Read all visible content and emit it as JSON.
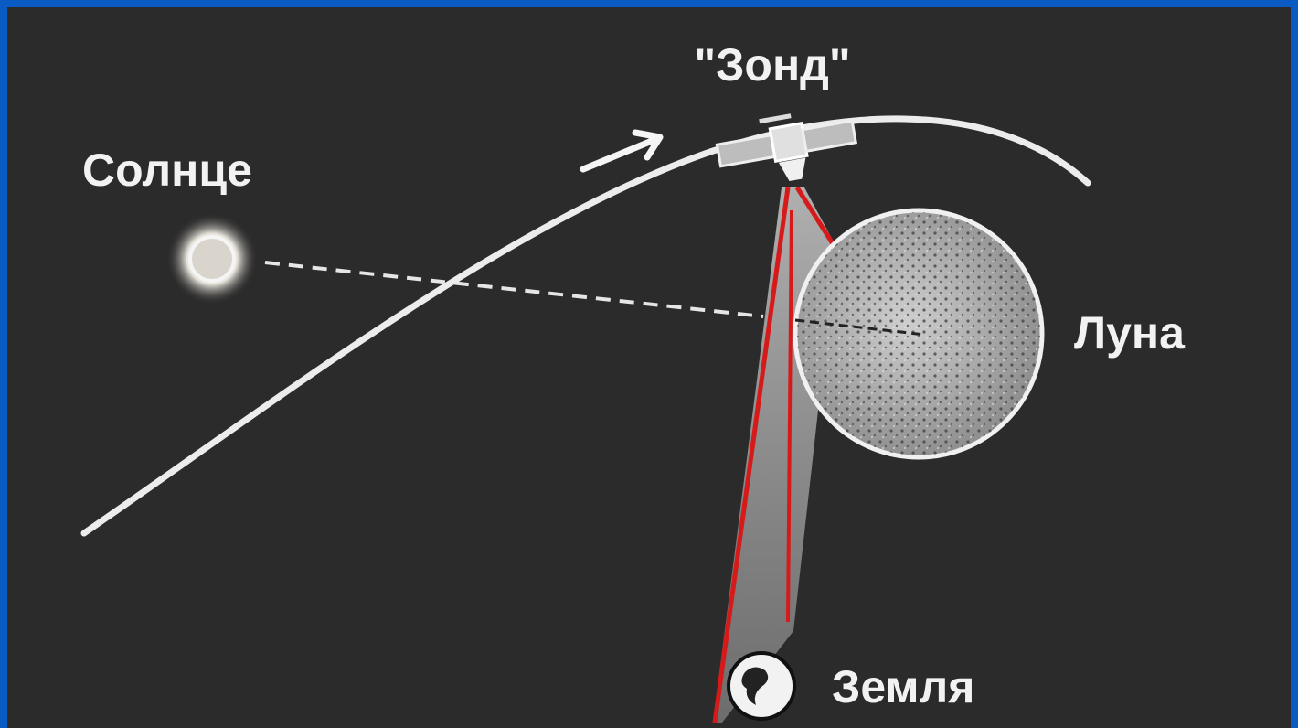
{
  "nodes": [
    {
      "label": "\"Зонд\""
    },
    {
      "label": "Солнце"
    },
    {
      "label": "Луна"
    },
    {
      "label": "Земля"
    }
  ]
}
